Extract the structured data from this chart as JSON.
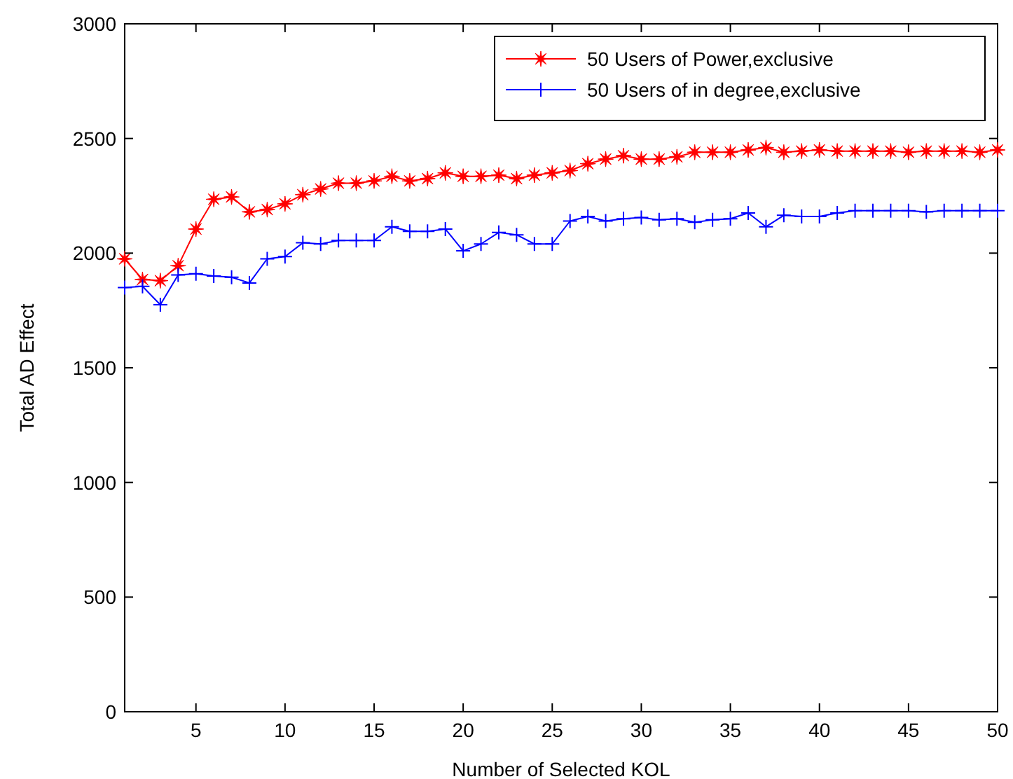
{
  "chart_data": {
    "type": "line",
    "xlabel": "Number of Selected KOL",
    "ylabel": "Total AD Effect",
    "x": [
      1,
      2,
      3,
      4,
      5,
      6,
      7,
      8,
      9,
      10,
      11,
      12,
      13,
      14,
      15,
      16,
      17,
      18,
      19,
      20,
      21,
      22,
      23,
      24,
      25,
      26,
      27,
      28,
      29,
      30,
      31,
      32,
      33,
      34,
      35,
      36,
      37,
      38,
      39,
      40,
      41,
      42,
      43,
      44,
      45,
      46,
      47,
      48,
      49,
      50
    ],
    "xlim": [
      1,
      50
    ],
    "xticks": [
      5,
      10,
      15,
      20,
      25,
      30,
      35,
      40,
      45,
      50
    ],
    "ylim": [
      0,
      3000
    ],
    "yticks": [
      0,
      500,
      1000,
      1500,
      2000,
      2500,
      3000
    ],
    "grid": false,
    "legend": "top right",
    "series": [
      {
        "name": "50 Users of Power,exclusive",
        "color": "#ff0000",
        "marker": "star",
        "values": [
          1975,
          1885,
          1880,
          1945,
          2105,
          2235,
          2245,
          2180,
          2190,
          2215,
          2255,
          2280,
          2305,
          2305,
          2315,
          2335,
          2315,
          2325,
          2350,
          2335,
          2335,
          2340,
          2325,
          2340,
          2350,
          2360,
          2390,
          2410,
          2425,
          2410,
          2410,
          2420,
          2440,
          2440,
          2440,
          2450,
          2460,
          2440,
          2445,
          2450,
          2445,
          2445,
          2445,
          2445,
          2440,
          2445,
          2445,
          2445,
          2440,
          2450
        ]
      },
      {
        "name": "50 Users of in degree,exclusive",
        "color": "#0000ff",
        "marker": "cross",
        "values": [
          1850,
          1855,
          1775,
          1905,
          1910,
          1900,
          1895,
          1870,
          1975,
          1985,
          2045,
          2040,
          2055,
          2055,
          2055,
          2115,
          2095,
          2095,
          2105,
          2010,
          2040,
          2090,
          2080,
          2040,
          2040,
          2140,
          2160,
          2140,
          2150,
          2155,
          2145,
          2150,
          2135,
          2145,
          2150,
          2175,
          2115,
          2165,
          2160,
          2160,
          2175,
          2185,
          2185,
          2185,
          2185,
          2180,
          2185,
          2185,
          2185,
          2185
        ]
      }
    ]
  }
}
